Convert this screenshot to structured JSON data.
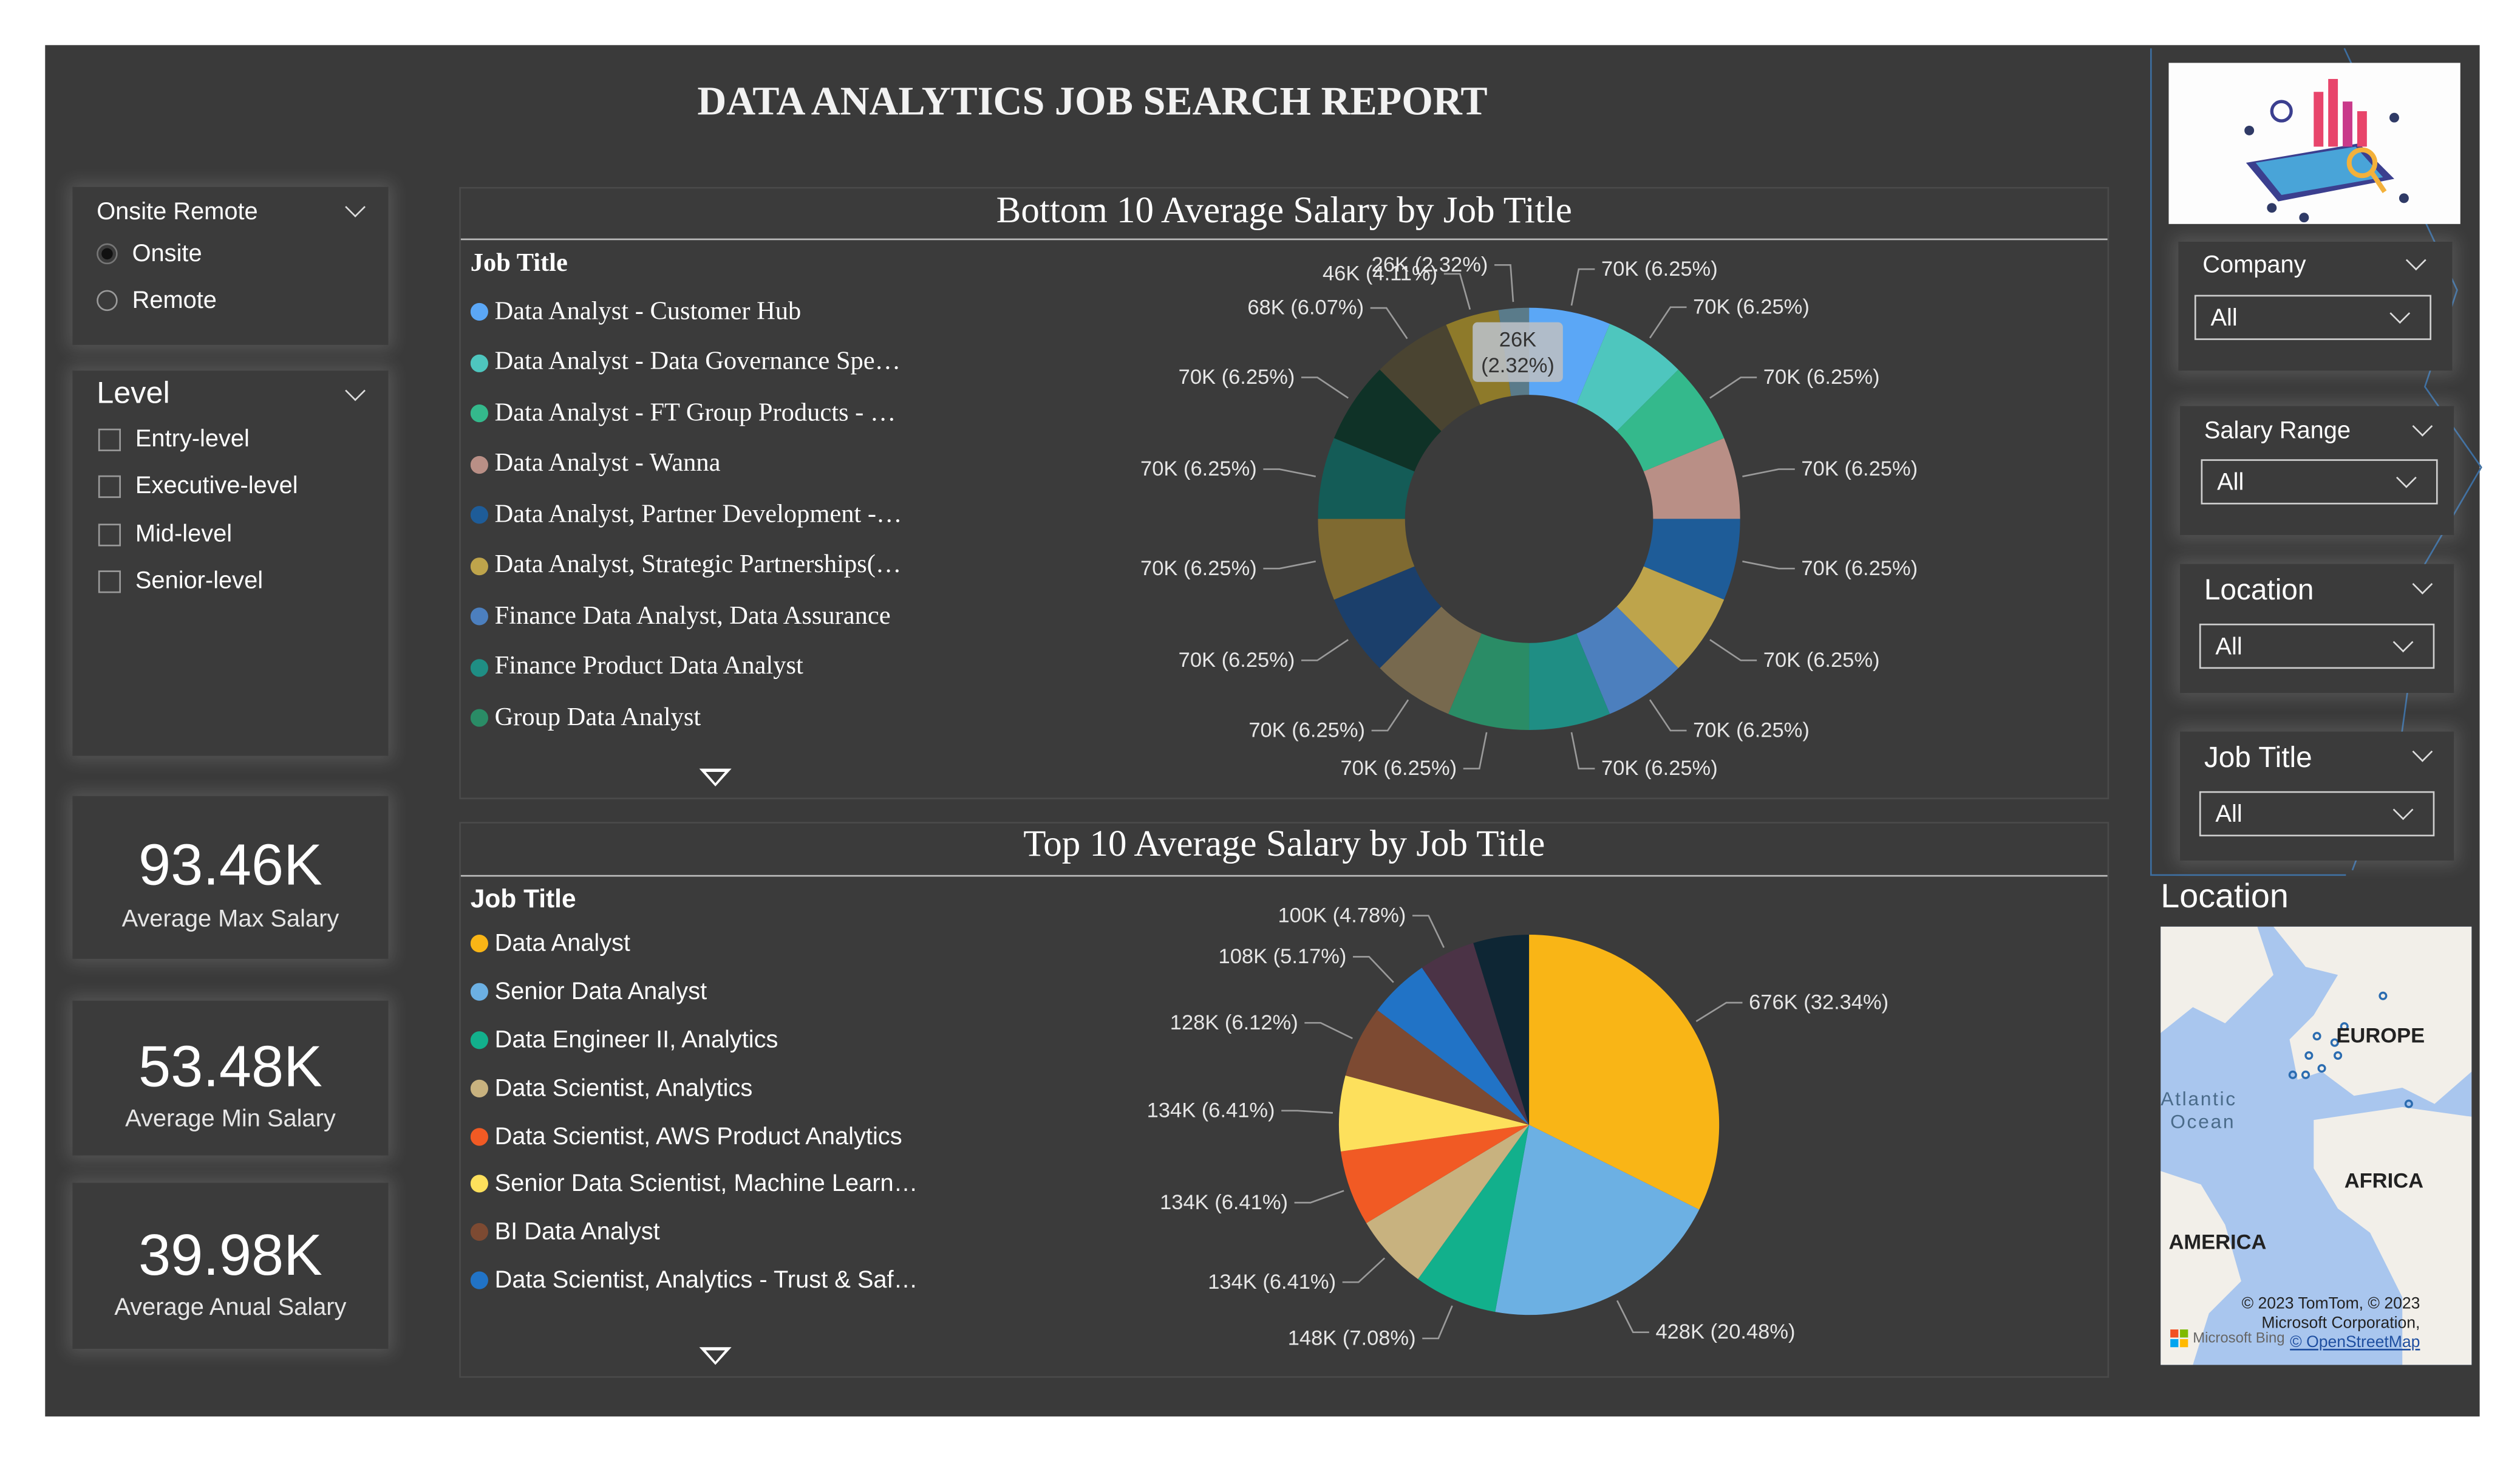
{
  "report": {
    "title": "DATA ANALYTICS JOB SEARCH REPORT"
  },
  "slicers": {
    "onsite_remote": {
      "title": "Onsite Remote",
      "options": [
        "Onsite",
        "Remote"
      ],
      "selected": "Onsite"
    },
    "level": {
      "title": "Level",
      "options": [
        "Entry-level",
        "Executive-level",
        "Mid-level",
        "Senior-level"
      ]
    },
    "company": {
      "title": "Company",
      "value": "All"
    },
    "salary_range": {
      "title": "Salary Range",
      "value": "All"
    },
    "location": {
      "title": "Location",
      "value": "All"
    },
    "job_title": {
      "title": "Job Title",
      "value": "All"
    }
  },
  "kpis": [
    {
      "value": "93.46K",
      "label": "Average Max Salary"
    },
    {
      "value": "53.48K",
      "label": "Average Min Salary"
    },
    {
      "value": "39.98K",
      "label": "Average Anual Salary"
    }
  ],
  "icons": {
    "dropdown": "chevron-down-icon",
    "scroll": "triangle-down-icon",
    "logo": "microsoft-logo"
  },
  "map": {
    "title": "Location",
    "labels": [
      "EUROPE",
      "Atlantic",
      "Ocean",
      "AFRICA",
      "AMERICA"
    ],
    "attribution": [
      "© 2023 TomTom, © 2023",
      "Microsoft Corporation,",
      "© OpenStreetMap"
    ],
    "bing": "Microsoft Bing"
  },
  "chart_data": [
    {
      "type": "donut",
      "title": "Bottom 10 Average Salary by Job Title",
      "legend_title": "Job Title",
      "legend": [
        "Data Analyst - Customer Hub",
        "Data Analyst - Data Governance Spe…",
        "Data Analyst - FT Group Products - …",
        "Data Analyst - Wanna",
        "Data Analyst, Partner Development -…",
        "Data Analyst, Strategic Partnerships(…",
        "Finance Data Analyst, Data Assurance",
        "Finance Product Data Analyst",
        "Group Data Analyst"
      ],
      "slices": [
        {
          "label": "70K (6.25%)",
          "value": 70,
          "color": "#5ba7f6"
        },
        {
          "label": "70K (6.25%)",
          "value": 70,
          "color": "#4ec6be"
        },
        {
          "label": "70K (6.25%)",
          "value": 70,
          "color": "#34b98c"
        },
        {
          "label": "70K (6.25%)",
          "value": 70,
          "color": "#b98f86"
        },
        {
          "label": "70K (6.25%)",
          "value": 70,
          "color": "#1e5c98"
        },
        {
          "label": "70K (6.25%)",
          "value": 70,
          "color": "#bea44b"
        },
        {
          "label": "70K (6.25%)",
          "value": 70,
          "color": "#4c7fbe"
        },
        {
          "label": "70K (6.25%)",
          "value": 70,
          "color": "#1f8e84"
        },
        {
          "label": "70K (6.25%)",
          "value": 70,
          "color": "#2a8c66"
        },
        {
          "label": "70K (6.25%)",
          "value": 70,
          "color": "#77694e"
        },
        {
          "label": "70K (6.25%)",
          "value": 70,
          "color": "#1b3f6b"
        },
        {
          "label": "70K (6.25%)",
          "value": 70,
          "color": "#7f6a31"
        },
        {
          "label": "70K (6.25%)",
          "value": 70,
          "color": "#145c57"
        },
        {
          "label": "70K (6.25%)",
          "value": 70,
          "color": "#0f3227"
        },
        {
          "label": "68K (6.07%)",
          "value": 68,
          "color": "#4a4431"
        },
        {
          "label": "46K (4.11%)",
          "value": 46,
          "color": "#8e7a2a"
        },
        {
          "label": "26K (2.32%)",
          "value": 26,
          "color": "#5a7b8a"
        }
      ],
      "tooltip": [
        "26K",
        "(2.32%)"
      ]
    },
    {
      "type": "pie",
      "title": "Top 10 Average Salary by Job Title",
      "legend_title": "Job Title",
      "legend": [
        "Data Analyst",
        "Senior Data Analyst",
        "Data Engineer II, Analytics",
        "Data Scientist, Analytics",
        "Data Scientist, AWS Product Analytics",
        "Senior Data Scientist, Machine Learn…",
        "BI Data Analyst",
        "Data Scientist, Analytics - Trust & Saf…"
      ],
      "slices": [
        {
          "label": "676K (32.34%)",
          "value": 676,
          "color": "#f9b516"
        },
        {
          "label": "428K (20.48%)",
          "value": 428,
          "color": "#6cb0e3"
        },
        {
          "label": "148K (7.08%)",
          "value": 148,
          "color": "#12b08c"
        },
        {
          "label": "134K (6.41%)",
          "value": 134,
          "color": "#c8b27f"
        },
        {
          "label": "134K (6.41%)",
          "value": 134,
          "color": "#f15a24"
        },
        {
          "label": "134K (6.41%)",
          "value": 134,
          "color": "#fde05c"
        },
        {
          "label": "128K (6.12%)",
          "value": 128,
          "color": "#7d4a32"
        },
        {
          "label": "108K (5.17%)",
          "value": 108,
          "color": "#2173c6"
        },
        {
          "label": "100K (4.78%)",
          "value": 100,
          "color": "#4b3346"
        },
        {
          "label": "",
          "value": 99,
          "color": "#0e2634"
        }
      ]
    }
  ]
}
